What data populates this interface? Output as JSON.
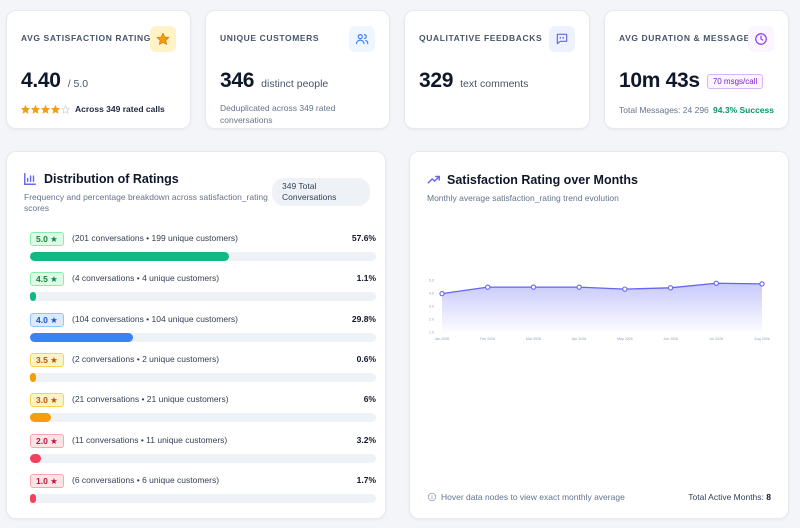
{
  "kpis": {
    "satisfaction": {
      "title": "AVG SATISFACTION RATING",
      "value": "4.40",
      "suffix": "/ 5.0",
      "stars": 4,
      "sub": "Across 349 rated calls",
      "icon": "star-icon",
      "accent": "#f59e0b"
    },
    "customers": {
      "title": "UNIQUE CUSTOMERS",
      "value": "346",
      "suffix": "distinct people",
      "sub": "Deduplicated across 349 rated conversations",
      "icon": "users-icon",
      "accent": "#3b82f6"
    },
    "feedbacks": {
      "title": "QUALITATIVE FEEDBACKS",
      "value": "329",
      "suffix": "text comments",
      "icon": "message-quote-icon",
      "accent": "#6366f1"
    },
    "duration": {
      "title": "AVG DURATION & MESSAGES",
      "value": "10m 43s",
      "badge": "70 msgs/call",
      "sub": "Total Messages: 24 296",
      "success": "94.3% Success",
      "icon": "clock-icon",
      "accent": "#9333ea"
    }
  },
  "distribution": {
    "title": "Distribution of Ratings",
    "subtitle": "Frequency and percentage breakdown across satisfaction_rating scores",
    "total_pill": "349 Total Conversations",
    "icon": "bar-chart-icon",
    "rows": [
      {
        "rating": "5.0 ★",
        "desc": "(201 conversations • 199 unique customers)",
        "pct": "57.6%",
        "value": 57.6,
        "color": "#10b981",
        "badge_bg": "#dcfce7",
        "badge_border": "#86efac",
        "badge_text": "#15803d"
      },
      {
        "rating": "4.5 ★",
        "desc": "(4 conversations • 4 unique customers)",
        "pct": "1.1%",
        "value": 1.1,
        "color": "#10b981",
        "badge_bg": "#dcfce7",
        "badge_border": "#86efac",
        "badge_text": "#15803d"
      },
      {
        "rating": "4.0 ★",
        "desc": "(104 conversations • 104 unique customers)",
        "pct": "29.8%",
        "value": 29.8,
        "color": "#3b82f6",
        "badge_bg": "#dbeafe",
        "badge_border": "#93c5fd",
        "badge_text": "#1d4ed8"
      },
      {
        "rating": "3.5 ★",
        "desc": "(2 conversations • 2 unique customers)",
        "pct": "0.6%",
        "value": 0.6,
        "color": "#f59e0b",
        "badge_bg": "#fef3c7",
        "badge_border": "#fcd34d",
        "badge_text": "#b45309"
      },
      {
        "rating": "3.0 ★",
        "desc": "(21 conversations • 21 unique customers)",
        "pct": "6%",
        "value": 6,
        "color": "#f59e0b",
        "badge_bg": "#fef3c7",
        "badge_border": "#fcd34d",
        "badge_text": "#b45309"
      },
      {
        "rating": "2.0 ★",
        "desc": "(11 conversations • 11 unique customers)",
        "pct": "3.2%",
        "value": 3.2,
        "color": "#f43f5e",
        "badge_bg": "#ffe4e6",
        "badge_border": "#fda4af",
        "badge_text": "#be123c"
      },
      {
        "rating": "1.0 ★",
        "desc": "(6 conversations • 6 unique customers)",
        "pct": "1.7%",
        "value": 1.7,
        "color": "#f43f5e",
        "badge_bg": "#ffe4e6",
        "badge_border": "#fda4af",
        "badge_text": "#be123c"
      }
    ]
  },
  "trend": {
    "title": "Satisfaction Rating over Months",
    "subtitle": "Monthly average satisfaction_rating trend evolution",
    "icon": "trending-up-icon",
    "hint": "Hover data nodes to view exact monthly average",
    "total_label": "Total Active Months:",
    "total_value": "8",
    "accent": "#6366f1"
  },
  "chart_data": {
    "type": "area",
    "title": "",
    "xlabel": "",
    "ylabel": "",
    "x": [
      "Jan 2026",
      "Feb 2026",
      "Mar 2026",
      "Apr 2026",
      "May 2026",
      "Jun 2026",
      "Jul 2026",
      "Aug 2026"
    ],
    "y_ticks": [
      "5.0",
      "4.0",
      "3.0",
      "2.0",
      "1.0"
    ],
    "ylim": [
      1,
      5
    ],
    "series": [
      {
        "values": [
          3.95,
          4.45,
          4.45,
          4.45,
          4.3,
          4.4,
          4.75,
          4.7
        ]
      }
    ],
    "grid": false,
    "legend": "none"
  }
}
